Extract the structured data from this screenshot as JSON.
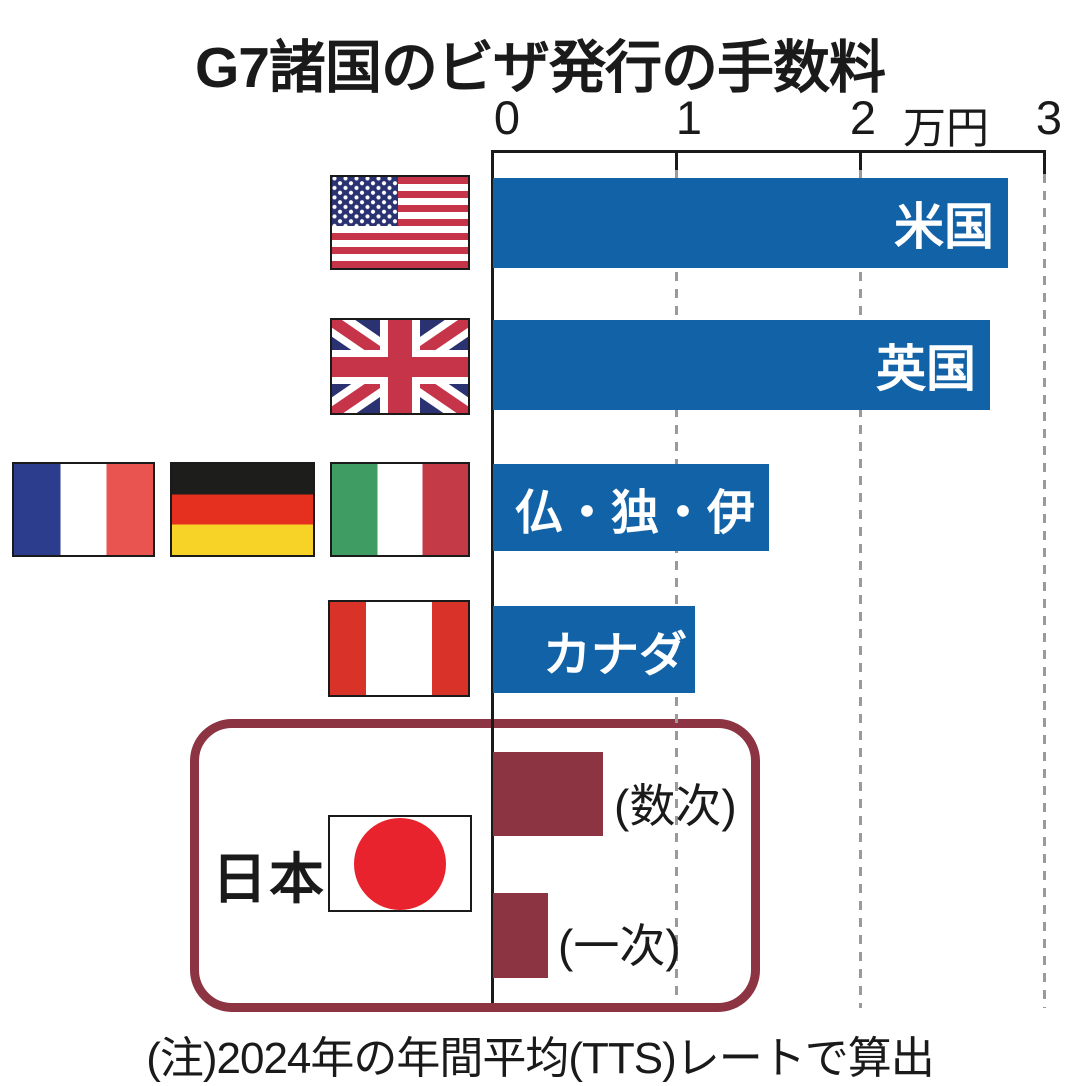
{
  "title": "G7諸国のビザ発行の手数料",
  "note": "(注)2024年の年間平均(TTS)レートで算出",
  "axis": {
    "ticks": [
      "0",
      "1",
      "2",
      "3"
    ],
    "unit": "万円"
  },
  "japan": {
    "label": "日本",
    "entries": [
      {
        "label": "(数次)",
        "value": 0.6
      },
      {
        "label": "(一次)",
        "value": 0.3
      }
    ]
  },
  "flags": [
    "usa-flag",
    "uk-flag",
    "france-flag",
    "germany-flag",
    "italy-flag",
    "canada-flag",
    "japan-flag"
  ],
  "colors": {
    "bar_blue": "#1262a8",
    "bar_dark_red": "#8c3442",
    "japan_box_border": "#8c3442",
    "gridline_gray": "#9a9a9a",
    "axis_black": "#1a1a1a"
  },
  "chart_data": {
    "type": "bar",
    "orientation": "horizontal",
    "title": "G7諸国のビザ発行の手数料",
    "categories": [
      "米国",
      "英国",
      "仏・独・伊",
      "カナダ",
      "日本(数次)",
      "日本(一次)"
    ],
    "values": [
      2.8,
      2.7,
      1.5,
      1.1,
      0.6,
      0.3
    ],
    "unit": "万円",
    "xlim": [
      0,
      3
    ],
    "x_ticks": [
      0,
      1,
      2,
      3
    ],
    "gridlines": "dashed vertical at 1, 2, 3",
    "bar_colors": [
      "#1262a8",
      "#1262a8",
      "#1262a8",
      "#1262a8",
      "#8c3442",
      "#8c3442"
    ],
    "note": "(注)2024年の年間平均(TTS)レートで算出"
  }
}
